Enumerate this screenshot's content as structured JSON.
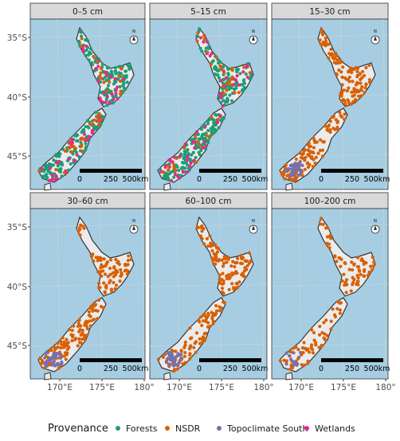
{
  "panels": [
    {
      "title": "0–5 cm"
    },
    {
      "title": "5–15 cm"
    },
    {
      "title": "15–30 cm"
    },
    {
      "title": "30–60 cm"
    },
    {
      "title": "60–100 cm"
    },
    {
      "title": "100–200 cm"
    }
  ],
  "y_axis_labels": [
    "35°S",
    "40°S",
    "45°S"
  ],
  "x_axis_labels": [
    "170°E",
    "175°E",
    "180°"
  ],
  "scale_bar_labels": [
    "0",
    "250",
    "500km"
  ],
  "compass_label": "N",
  "legend": {
    "title": "Provenance",
    "items": [
      {
        "label": "Forests",
        "color": "#1b9e77"
      },
      {
        "label": "NSDR",
        "color": "#d95f02"
      },
      {
        "label": "Topoclimate South",
        "color": "#7570b3"
      },
      {
        "label": "Wetlands",
        "color": "#e7298a"
      }
    ]
  }
}
